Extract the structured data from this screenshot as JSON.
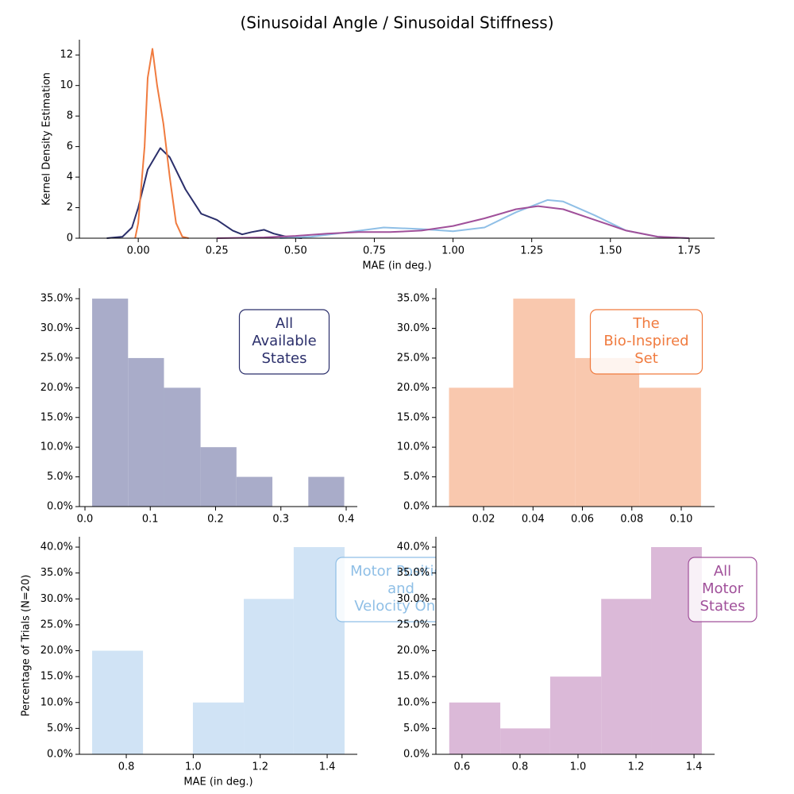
{
  "chart_data": [
    {
      "type": "line",
      "title": "(Sinusoidal Angle / Sinusoidal Stiffness)",
      "xlabel": "MAE (in deg.)",
      "ylabel": "Kernel Density Estimation",
      "xlim": [
        -0.187,
        1.831
      ],
      "ylim": [
        0,
        13
      ],
      "xticks": [
        {
          "value": 0,
          "label": "0.00"
        },
        0.25,
        {
          "value": 0.5,
          "label": "0.50"
        },
        0.75,
        {
          "value": 1,
          "label": "1.00"
        },
        1.25,
        {
          "value": 1.5,
          "label": "1.50"
        },
        1.75
      ],
      "yticks": [
        0,
        2,
        4,
        6,
        8,
        10,
        12
      ],
      "series": [
        {
          "color": "#2b2f6b",
          "x": [
            -0.1,
            -0.05,
            -0.02,
            0,
            0.03,
            0.07,
            0.1,
            0.15,
            0.2,
            0.25,
            0.3,
            0.33,
            0.36,
            0.4,
            0.43,
            0.48,
            0.52
          ],
          "values": [
            0,
            0.1,
            0.7,
            2,
            4.5,
            5.9,
            5.3,
            3.2,
            1.6,
            1.2,
            0.5,
            0.25,
            0.4,
            0.55,
            0.3,
            0.05,
            0
          ]
        },
        {
          "color": "#f07b3f",
          "x": [
            -0.01,
            0,
            0.02,
            0.03,
            0.045,
            0.06,
            0.08,
            0.1,
            0.12,
            0.14,
            0.16
          ],
          "values": [
            0,
            1,
            6,
            10.5,
            12.4,
            10,
            7.5,
            4,
            1,
            0.1,
            0
          ]
        },
        {
          "color": "#8fbfe6",
          "x": [
            0.45,
            0.55,
            0.65,
            0.78,
            0.9,
            1.0,
            1.1,
            1.2,
            1.3,
            1.35,
            1.45,
            1.55,
            1.65,
            1.75
          ],
          "values": [
            0,
            0.1,
            0.35,
            0.7,
            0.6,
            0.45,
            0.7,
            1.7,
            2.5,
            2.4,
            1.5,
            0.5,
            0.1,
            0
          ]
        },
        {
          "color": "#a0509a",
          "x": [
            0.25,
            0.4,
            0.5,
            0.6,
            0.7,
            0.8,
            0.9,
            1.0,
            1.1,
            1.2,
            1.27,
            1.35,
            1.45,
            1.55,
            1.65,
            1.75
          ],
          "values": [
            0,
            0.05,
            0.15,
            0.3,
            0.4,
            0.4,
            0.5,
            0.8,
            1.3,
            1.9,
            2.1,
            1.9,
            1.2,
            0.5,
            0.1,
            0
          ]
        }
      ]
    },
    {
      "type": "histogram",
      "color": "#a9acc9",
      "annotation": [
        "All",
        "Available",
        "States"
      ],
      "annotation_color": "#2b2f6b",
      "bins": [
        0.011,
        0.066,
        0.121,
        0.177,
        0.232,
        0.287,
        0.342,
        0.397
      ],
      "values": [
        35,
        25,
        20,
        10,
        5,
        0,
        5
      ],
      "xlim": [
        -0.0085,
        0.417
      ],
      "ylim": [
        0,
        36.75
      ],
      "xticks": [
        {
          "value": 0,
          "label": "0.0"
        },
        0.1,
        0.2,
        0.3,
        0.4
      ],
      "yticks": [
        {
          "value": 0,
          "label": "0.0%"
        },
        {
          "value": 5,
          "label": "5.0%"
        },
        {
          "value": 10,
          "label": "10.0%"
        },
        {
          "value": 15,
          "label": "15.0%"
        },
        {
          "value": 20,
          "label": "20.0%"
        },
        {
          "value": 25,
          "label": "25.0%"
        },
        {
          "value": 30,
          "label": "30.0%"
        },
        {
          "value": 35,
          "label": "35.0%"
        }
      ]
    },
    {
      "type": "histogram",
      "color": "#f9c8ae",
      "annotation": [
        "The",
        "Bio-Inspired",
        "Set"
      ],
      "annotation_color": "#f07b3f",
      "bins": [
        0.006,
        0.032,
        0.057,
        0.083,
        0.108
      ],
      "values": [
        20,
        35,
        25,
        20
      ],
      "xlim": [
        0.0007,
        0.1135
      ],
      "ylim": [
        0,
        36.75
      ],
      "xticks": [
        0.02,
        0.04,
        0.06,
        0.08,
        {
          "value": 0.1,
          "label": "0.10"
        }
      ],
      "yticks": [
        {
          "value": 0,
          "label": "0.0%"
        },
        {
          "value": 5,
          "label": "5.0%"
        },
        {
          "value": 10,
          "label": "10.0%"
        },
        {
          "value": 15,
          "label": "15.0%"
        },
        {
          "value": 20,
          "label": "20.0%"
        },
        {
          "value": 25,
          "label": "25.0%"
        },
        {
          "value": 30,
          "label": "30.0%"
        },
        {
          "value": 35,
          "label": "35.0%"
        }
      ]
    },
    {
      "type": "histogram",
      "color": "#d0e3f5",
      "annotation": [
        "Motor Position",
        "and",
        "Velocity Only"
      ],
      "annotation_color": "#8fbfe6",
      "xlabel": "MAE (in deg.)",
      "ylabel": "Percentage of Trials (N=20)",
      "bins": [
        0.698,
        0.85,
        0.999,
        1.151,
        1.3,
        1.452
      ],
      "values": [
        20,
        0,
        10,
        30,
        40
      ],
      "xlim": [
        0.66,
        1.49
      ],
      "ylim": [
        0,
        42
      ],
      "xticks": [
        0.8,
        {
          "value": 1,
          "label": "1.0"
        },
        1.2,
        1.4
      ],
      "yticks": [
        {
          "value": 0,
          "label": "0.0%"
        },
        {
          "value": 5,
          "label": "5.0%"
        },
        {
          "value": 10,
          "label": "10.0%"
        },
        {
          "value": 15,
          "label": "15.0%"
        },
        {
          "value": 20,
          "label": "20.0%"
        },
        {
          "value": 25,
          "label": "25.0%"
        },
        {
          "value": 30,
          "label": "30.0%"
        },
        {
          "value": 35,
          "label": "35.0%"
        },
        {
          "value": 40,
          "label": "40.0%"
        }
      ]
    },
    {
      "type": "histogram",
      "color": "#dbb9d8",
      "annotation": [
        "All",
        "Motor",
        "States"
      ],
      "annotation_color": "#a0509a",
      "bins": [
        0.556,
        0.732,
        0.904,
        1.08,
        1.252,
        1.427
      ],
      "values": [
        10,
        5,
        15,
        30,
        40
      ],
      "xlim": [
        0.51,
        1.471
      ],
      "ylim": [
        0,
        42
      ],
      "xticks": [
        0.6,
        0.8,
        {
          "value": 1,
          "label": "1.0"
        },
        1.2,
        1.4
      ],
      "yticks": [
        {
          "value": 0,
          "label": "0.0%"
        },
        {
          "value": 5,
          "label": "5.0%"
        },
        {
          "value": 10,
          "label": "10.0%"
        },
        {
          "value": 15,
          "label": "15.0%"
        },
        {
          "value": 20,
          "label": "20.0%"
        },
        {
          "value": 25,
          "label": "25.0%"
        },
        {
          "value": 30,
          "label": "30.0%"
        },
        {
          "value": 35,
          "label": "35.0%"
        },
        {
          "value": 40,
          "label": "40.0%"
        }
      ]
    }
  ]
}
